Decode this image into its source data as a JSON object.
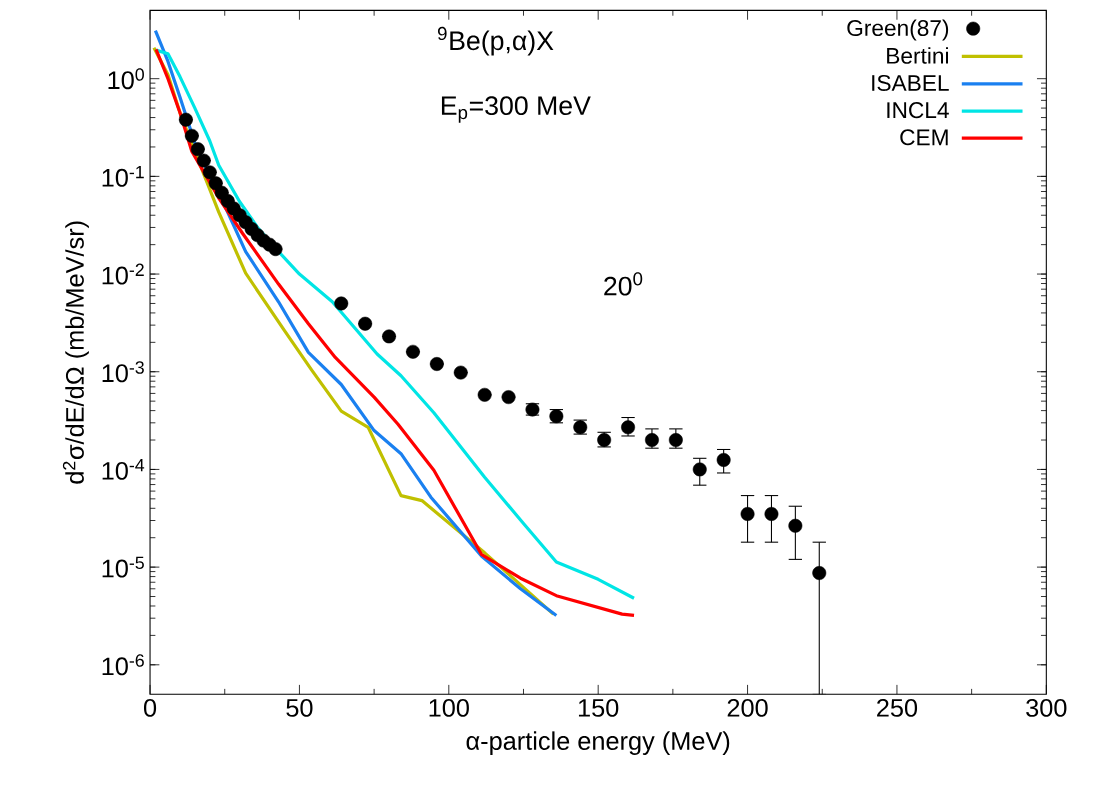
{
  "chart_data": {
    "type": "line",
    "xlabel": "α-particle energy (MeV)",
    "ylabel": "d$^{2}$σ/dE/dΩ (mb/MeV/sr)",
    "annotations": [
      "$^{9}$Be(p,α)X",
      "E$_{p}$=300 MeV",
      "20$^{0}$"
    ],
    "log": "y",
    "xlim": [
      0,
      300
    ],
    "xticks": [
      0,
      50,
      100,
      150,
      200,
      250,
      300
    ],
    "ylim": [
      5e-07,
      5
    ],
    "yticks": [
      {
        "value": 1e-06,
        "label": "10$^{-6}$"
      },
      {
        "value": 1e-05,
        "label": "10$^{-5}$"
      },
      {
        "value": 0.0001,
        "label": "10$^{-4}$"
      },
      {
        "value": 0.001,
        "label": "10$^{-3}$"
      },
      {
        "value": 0.01,
        "label": "10$^{-2}$"
      },
      {
        "value": 0.1,
        "label": "10$^{-1}$"
      },
      {
        "value": 1,
        "label": "10$^{0}$"
      }
    ],
    "legend": "top right",
    "series": [
      {
        "name": "Green(87)",
        "type": "scatter",
        "marker": "circle",
        "color": "#000000",
        "x": [
          12,
          14,
          16,
          18,
          20,
          22,
          24,
          26,
          28,
          30,
          32,
          34,
          36,
          38,
          40,
          42,
          64,
          72,
          80,
          88,
          96,
          104,
          112,
          120,
          128,
          136,
          144,
          152,
          160,
          168,
          176,
          184,
          192,
          200,
          208,
          216,
          224
        ],
        "values": [
          0.38,
          0.26,
          0.19,
          0.145,
          0.11,
          0.085,
          0.068,
          0.056,
          0.047,
          0.04,
          0.034,
          0.029,
          0.025,
          0.022,
          0.02,
          0.018,
          0.005,
          0.0031,
          0.0023,
          0.0016,
          0.0012,
          0.00098,
          0.00058,
          0.00055,
          0.00041,
          0.00035,
          0.00027,
          0.0002,
          0.00027,
          0.0002,
          0.0002,
          0.0001,
          0.000125,
          3.5e-05,
          3.5e-05,
          2.65e-05,
          8.7e-06
        ],
        "errors": [
          null,
          null,
          null,
          null,
          null,
          null,
          null,
          null,
          null,
          null,
          null,
          null,
          null,
          null,
          null,
          null,
          null,
          null,
          null,
          null,
          null,
          null,
          null,
          null,
          [
            0.00036,
            0.00047
          ],
          [
            0.0003,
            0.00041
          ],
          [
            0.00023,
            0.00032
          ],
          [
            0.00017,
            0.00024
          ],
          [
            0.00022,
            0.00034
          ],
          [
            0.000165,
            0.00026
          ],
          [
            0.000165,
            0.00026
          ],
          [
            6.9e-05,
            0.00013
          ],
          [
            9.2e-05,
            0.00016
          ],
          [
            1.8e-05,
            5.4e-05
          ],
          [
            1.8e-05,
            5.4e-05
          ],
          [
            1.2e-05,
            4.2e-05
          ],
          [
            5e-07,
            1.8e-05
          ]
        ]
      },
      {
        "name": "Bertini",
        "color": "#c0c000",
        "x": [
          1.3,
          6,
          10,
          16,
          23,
          32,
          45,
          54,
          64,
          73,
          84,
          91,
          112,
          135
        ],
        "values": [
          2.07,
          1.1,
          0.45,
          0.15,
          0.043,
          0.0102,
          0.00264,
          0.00105,
          0.000395,
          0.00027,
          5.4e-05,
          4.8e-05,
          1.4e-05,
          3.3e-06
        ]
      },
      {
        "name": "ISABEL",
        "color": "#1a80f0",
        "x": [
          1.8,
          6,
          10,
          15,
          20,
          25,
          32,
          43,
          53,
          64,
          75,
          84,
          94,
          111,
          124,
          136
        ],
        "values": [
          3.1,
          1.5,
          0.65,
          0.22,
          0.1,
          0.05,
          0.017,
          0.0052,
          0.00158,
          0.00074,
          0.00025,
          0.000145,
          5.2e-05,
          1.29e-05,
          6e-06,
          3.2e-06
        ]
      },
      {
        "name": "INCL4",
        "color": "#00e5e5",
        "x": [
          2,
          6,
          10,
          15,
          20,
          23,
          30,
          36,
          43,
          50,
          61,
          76,
          84,
          95,
          112,
          125,
          136,
          150,
          162
        ],
        "values": [
          1.96,
          1.8,
          1.05,
          0.5,
          0.23,
          0.13,
          0.055,
          0.03,
          0.017,
          0.01,
          0.0052,
          0.00152,
          0.00091,
          0.00038,
          8.3e-05,
          2.8e-05,
          1.13e-05,
          7.5e-06,
          4.8e-06
        ]
      },
      {
        "name": "CEM",
        "color": "#ff0000",
        "x": [
          2,
          6,
          10,
          14,
          23,
          31,
          43,
          53,
          62,
          75,
          83,
          95,
          111,
          124,
          136,
          158,
          162
        ],
        "values": [
          2.0,
          1.0,
          0.45,
          0.18,
          0.06,
          0.026,
          0.0079,
          0.0031,
          0.0014,
          0.00055,
          0.00029,
          9.8e-05,
          1.34e-05,
          7.7e-06,
          5.1e-06,
          3.3e-06,
          3.2e-06
        ]
      }
    ]
  }
}
